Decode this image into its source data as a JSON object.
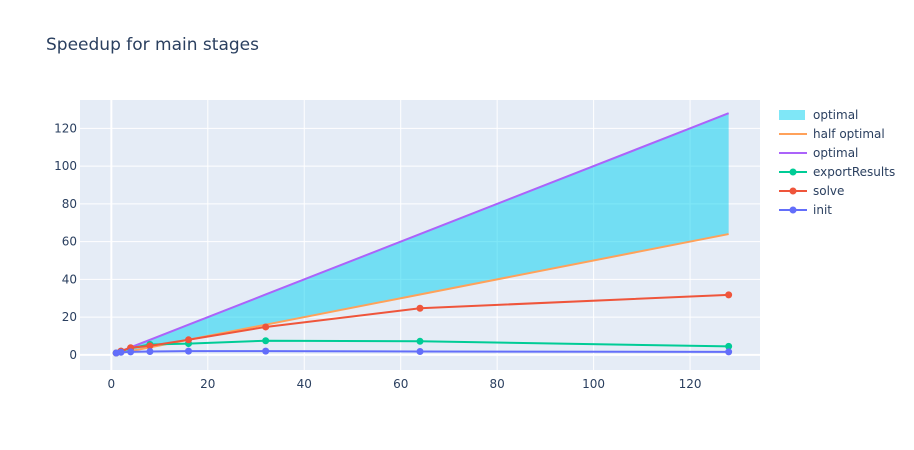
{
  "chart_data": {
    "type": "line",
    "title": "Speedup for main stages",
    "xlabel": "",
    "ylabel": "",
    "xlim": [
      -6.5,
      134.5
    ],
    "ylim": [
      -8,
      135
    ],
    "xticks": [
      0,
      20,
      40,
      60,
      80,
      100,
      120
    ],
    "yticks": [
      0,
      20,
      40,
      60,
      80,
      100,
      120
    ],
    "grid": true,
    "legend_position": "top-right",
    "colors": {
      "plot_bg": "#e5ecf6",
      "grid": "#ffffff",
      "text": "#2a3f5f"
    },
    "band": {
      "name": "optimal",
      "color": "#00cfef",
      "opacity": 0.5,
      "x": [
        1,
        2,
        4,
        8,
        16,
        32,
        64,
        128
      ],
      "upper": [
        1,
        2,
        4,
        8,
        16,
        32,
        64,
        128
      ],
      "lower": [
        0.5,
        1,
        2,
        4,
        8,
        16,
        32,
        64
      ]
    },
    "series": [
      {
        "name": "half optimal",
        "color": "#ffa15a",
        "markers": false,
        "x": [
          1,
          2,
          4,
          8,
          16,
          32,
          64,
          128
        ],
        "y": [
          0.5,
          1,
          2,
          4,
          8,
          16,
          32,
          64
        ]
      },
      {
        "name": "optimal",
        "color": "#ab63fa",
        "markers": false,
        "x": [
          1,
          2,
          4,
          8,
          16,
          32,
          64,
          128
        ],
        "y": [
          1,
          2,
          4,
          8,
          16,
          32,
          64,
          128
        ]
      },
      {
        "name": "exportResults",
        "color": "#00cc96",
        "markers": true,
        "x": [
          1,
          2,
          4,
          8,
          16,
          32,
          64,
          128
        ],
        "y": [
          1,
          1.9,
          3.5,
          5.5,
          6,
          7.5,
          7.2,
          4.5
        ]
      },
      {
        "name": "solve",
        "color": "#ef553b",
        "markers": true,
        "x": [
          1,
          2,
          4,
          8,
          16,
          32,
          64,
          128
        ],
        "y": [
          1,
          2,
          3.8,
          4.8,
          8,
          14.8,
          24.7,
          31.8
        ]
      },
      {
        "name": "init",
        "color": "#636efa",
        "markers": true,
        "x": [
          1,
          2,
          4,
          8,
          16,
          32,
          64,
          128
        ],
        "y": [
          1,
          1.4,
          1.6,
          1.8,
          2,
          2,
          1.8,
          1.6
        ]
      }
    ],
    "legend_order": [
      "optimal-band",
      "half optimal",
      "optimal",
      "exportResults",
      "solve",
      "init"
    ]
  }
}
